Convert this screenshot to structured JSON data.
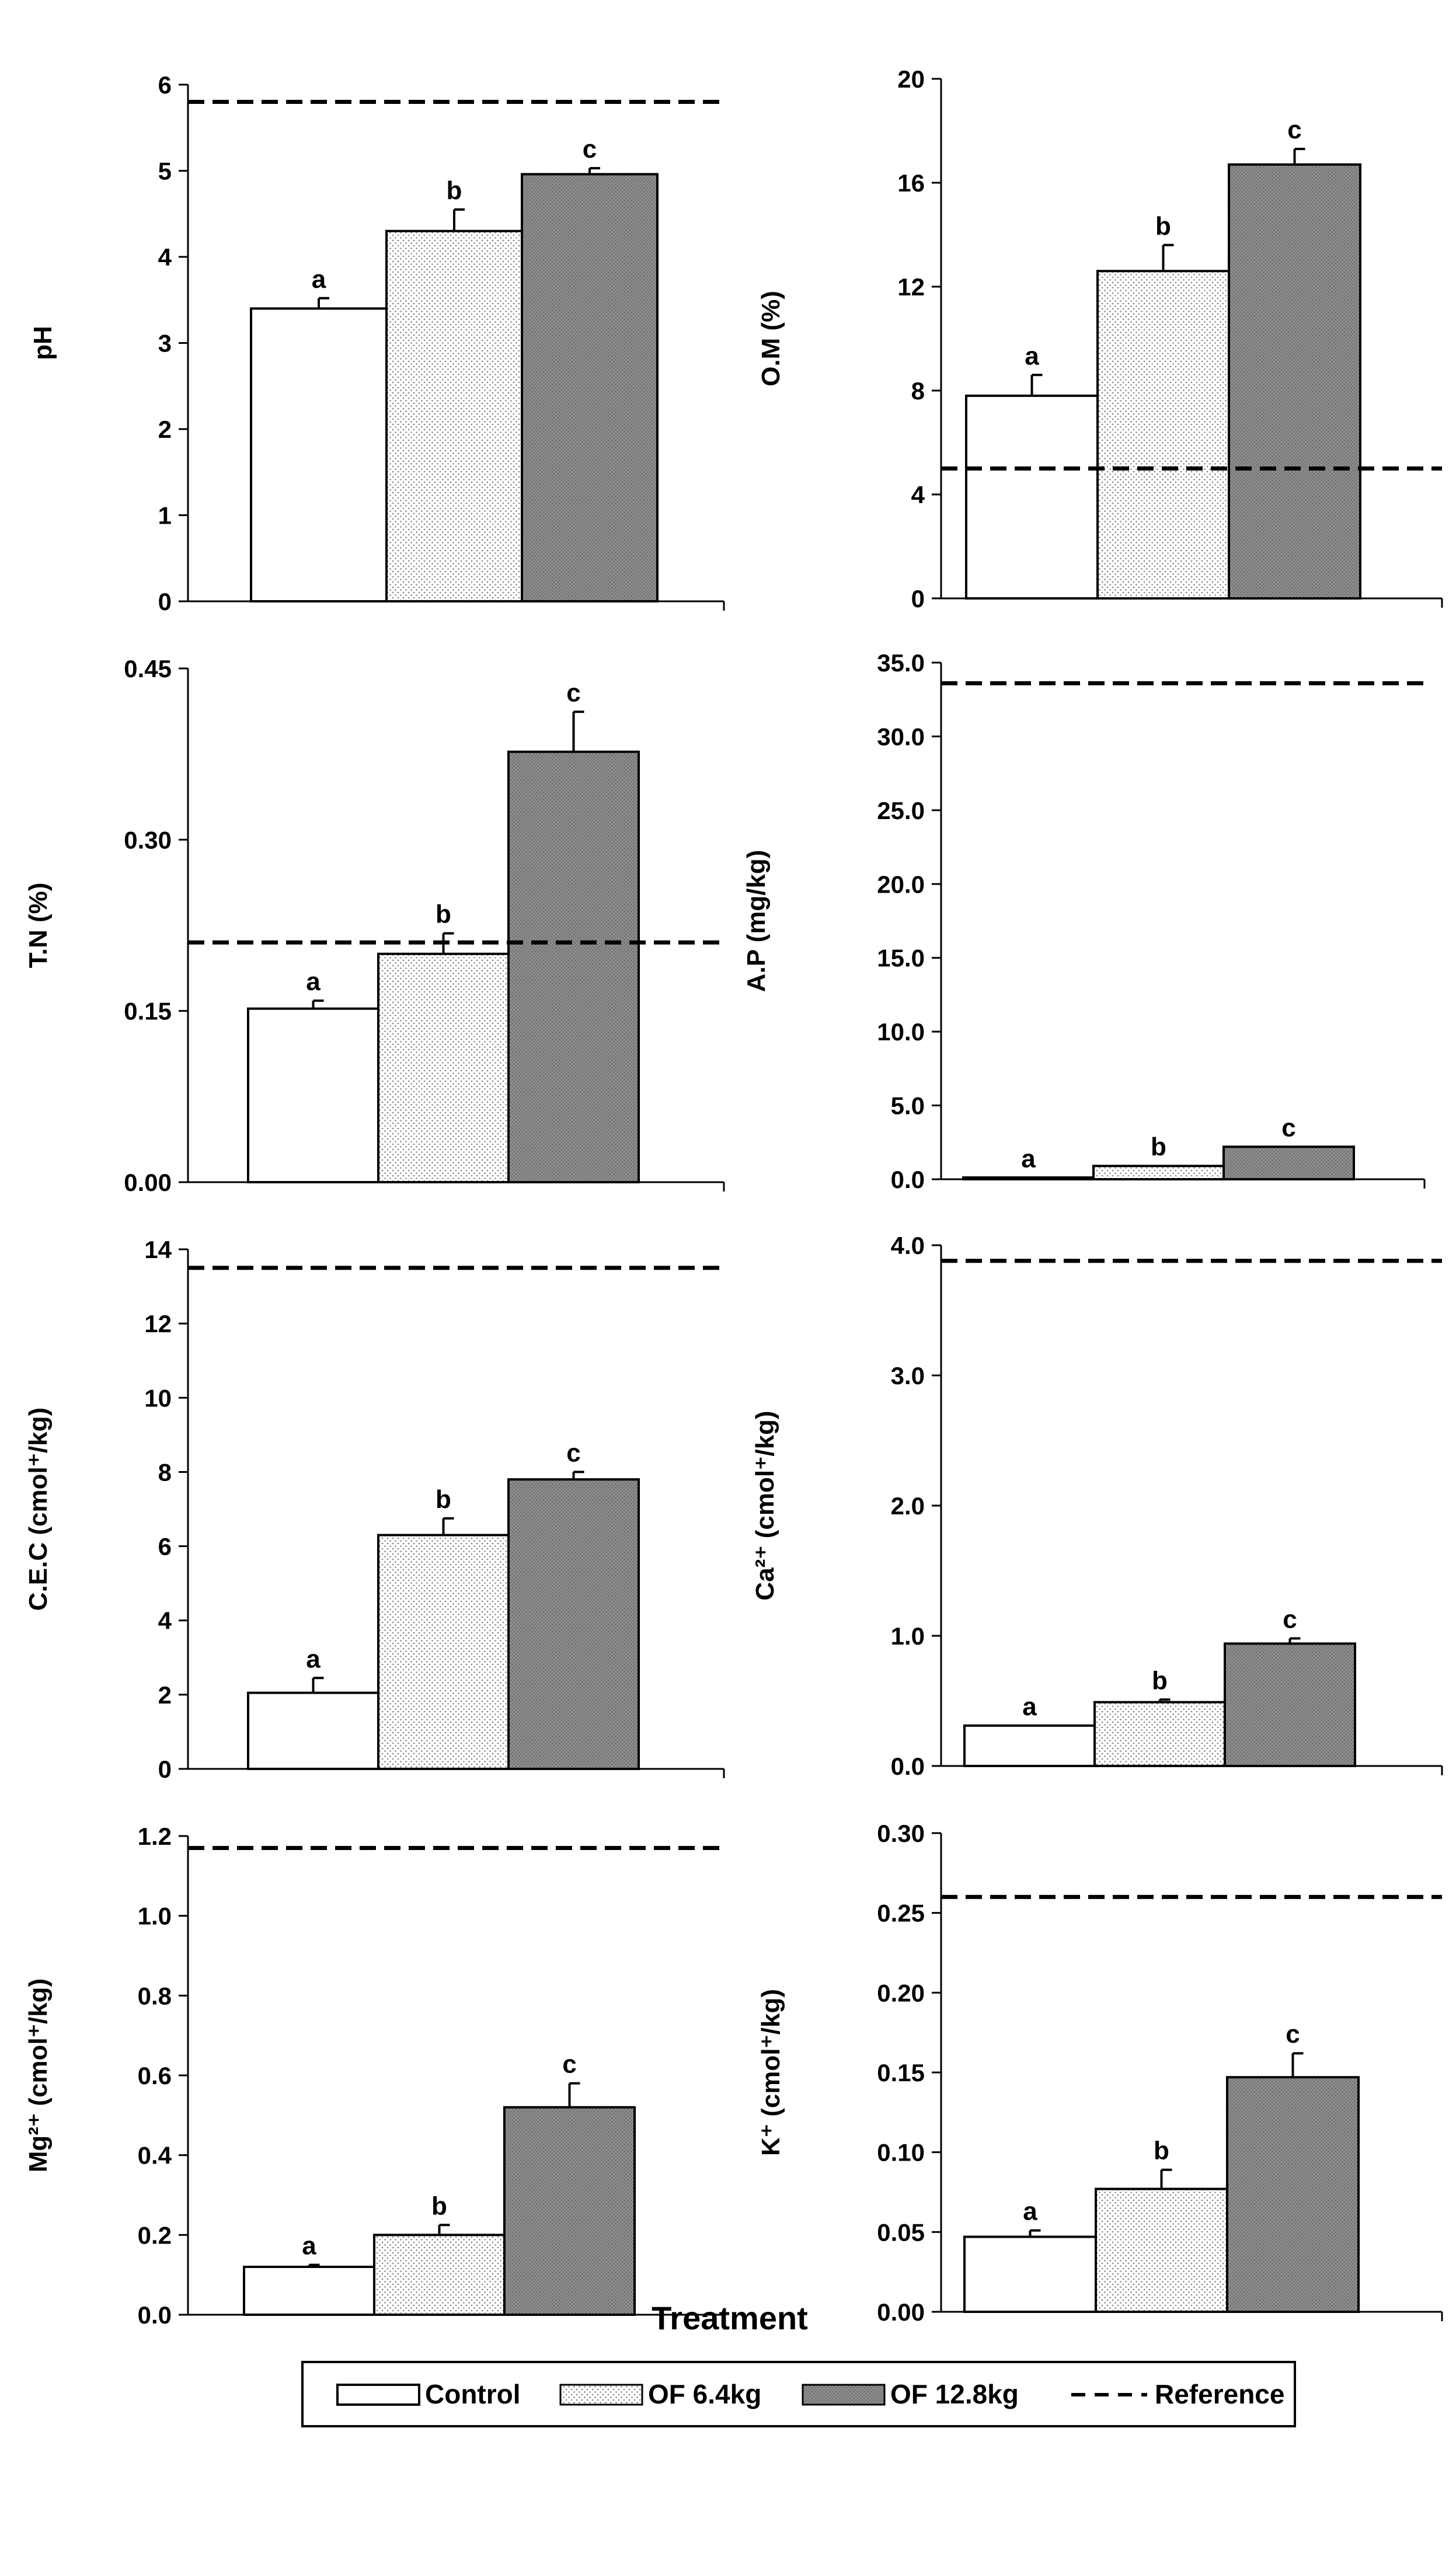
{
  "chart_data": [
    {
      "type": "bar",
      "title": "",
      "ylabel": "pH",
      "categories": [
        "Control",
        "OF 6.4kg",
        "OF 12.8kg"
      ],
      "values": [
        3.4,
        4.3,
        4.96
      ],
      "errors": [
        0.12,
        0.25,
        0.07
      ],
      "significance": [
        "a",
        "b",
        "c"
      ],
      "reference": 5.8,
      "ylim": [
        0,
        6
      ],
      "yticks": [
        "0",
        "1",
        "2",
        "3",
        "4",
        "5",
        "6"
      ]
    },
    {
      "type": "bar",
      "title": "",
      "ylabel": "O.M (%)",
      "categories": [
        "Control",
        "OF 6.4kg",
        "OF 12.8kg"
      ],
      "values": [
        7.8,
        12.6,
        16.7
      ],
      "errors": [
        0.8,
        1.0,
        0.6
      ],
      "significance": [
        "a",
        "b",
        "c"
      ],
      "reference": 5.0,
      "ylim": [
        0,
        20
      ],
      "yticks": [
        "0",
        "4",
        "8",
        "12",
        "16",
        "20"
      ]
    },
    {
      "type": "bar",
      "title": "",
      "ylabel": "T.N (%)",
      "categories": [
        "Control",
        "OF 6.4kg",
        "OF 12.8kg"
      ],
      "values": [
        0.152,
        0.2,
        0.377
      ],
      "errors": [
        0.007,
        0.018,
        0.035
      ],
      "significance": [
        "a",
        "b",
        "c"
      ],
      "reference": 0.21,
      "ylim": [
        0,
        0.45
      ],
      "yticks": [
        "0.00",
        "0.15",
        "0.30",
        "0.45"
      ]
    },
    {
      "type": "bar",
      "title": "",
      "ylabel": "A.P (mg/kg)",
      "categories": [
        "Control",
        "OF 6.4kg",
        "OF 12.8kg"
      ],
      "values": [
        0.1,
        0.9,
        2.2
      ],
      "errors": [
        0,
        0,
        0
      ],
      "significance": [
        "a",
        "b",
        "c"
      ],
      "reference": 33.6,
      "ylim": [
        0,
        35
      ],
      "yticks": [
        "0.0",
        "5.0",
        "10.0",
        "15.0",
        "20.0",
        "25.0",
        "30.0",
        "35.0"
      ]
    },
    {
      "type": "bar",
      "title": "",
      "ylabel": "C.E.C (cmol⁺/kg)",
      "categories": [
        "Control",
        "OF 6.4kg",
        "OF 12.8kg"
      ],
      "values": [
        2.05,
        6.3,
        7.8
      ],
      "errors": [
        0.4,
        0.45,
        0.2
      ],
      "significance": [
        "a",
        "b",
        "c"
      ],
      "reference": 13.5,
      "ylim": [
        0,
        14
      ],
      "yticks": [
        "0",
        "2",
        "4",
        "6",
        "8",
        "10",
        "12",
        "14"
      ]
    },
    {
      "type": "bar",
      "title": "",
      "ylabel": "Ca²⁺ (cmol⁺/kg)",
      "categories": [
        "Control",
        "OF 6.4kg",
        "OF 12.8kg"
      ],
      "values": [
        0.31,
        0.49,
        0.94
      ],
      "errors": [
        0,
        0.02,
        0.04
      ],
      "significance": [
        "a",
        "b",
        "c"
      ],
      "reference": 3.88,
      "ylim": [
        0,
        4.0
      ],
      "yticks": [
        "0.0",
        "1.0",
        "2.0",
        "3.0",
        "4.0"
      ]
    },
    {
      "type": "bar",
      "title": "",
      "ylabel": "Mg²⁺ (cmol⁺/kg)",
      "categories": [
        "Control",
        "OF 6.4kg",
        "OF 12.8kg"
      ],
      "values": [
        0.12,
        0.2,
        0.52
      ],
      "errors": [
        0.005,
        0.025,
        0.06
      ],
      "significance": [
        "a",
        "b",
        "c"
      ],
      "reference": 1.17,
      "ylim": [
        0,
        1.2
      ],
      "yticks": [
        "0.0",
        "0.2",
        "0.4",
        "0.6",
        "0.8",
        "1.0",
        "1.2"
      ]
    },
    {
      "type": "bar",
      "title": "",
      "ylabel": "K⁺ (cmol⁺/kg)",
      "categories": [
        "Control",
        "OF 6.4kg",
        "OF 12.8kg"
      ],
      "values": [
        0.047,
        0.077,
        0.147
      ],
      "errors": [
        0.004,
        0.012,
        0.015
      ],
      "significance": [
        "a",
        "b",
        "c"
      ],
      "reference": 0.26,
      "ylim": [
        0,
        0.3
      ],
      "yticks": [
        "0.00",
        "0.05",
        "0.10",
        "0.15",
        "0.20",
        "0.25",
        "0.30"
      ]
    }
  ],
  "xlabel": "Treatment",
  "legend": {
    "control": "Control",
    "of64": "OF 6.4kg",
    "of128": "OF 12.8kg",
    "reference": "Reference"
  }
}
